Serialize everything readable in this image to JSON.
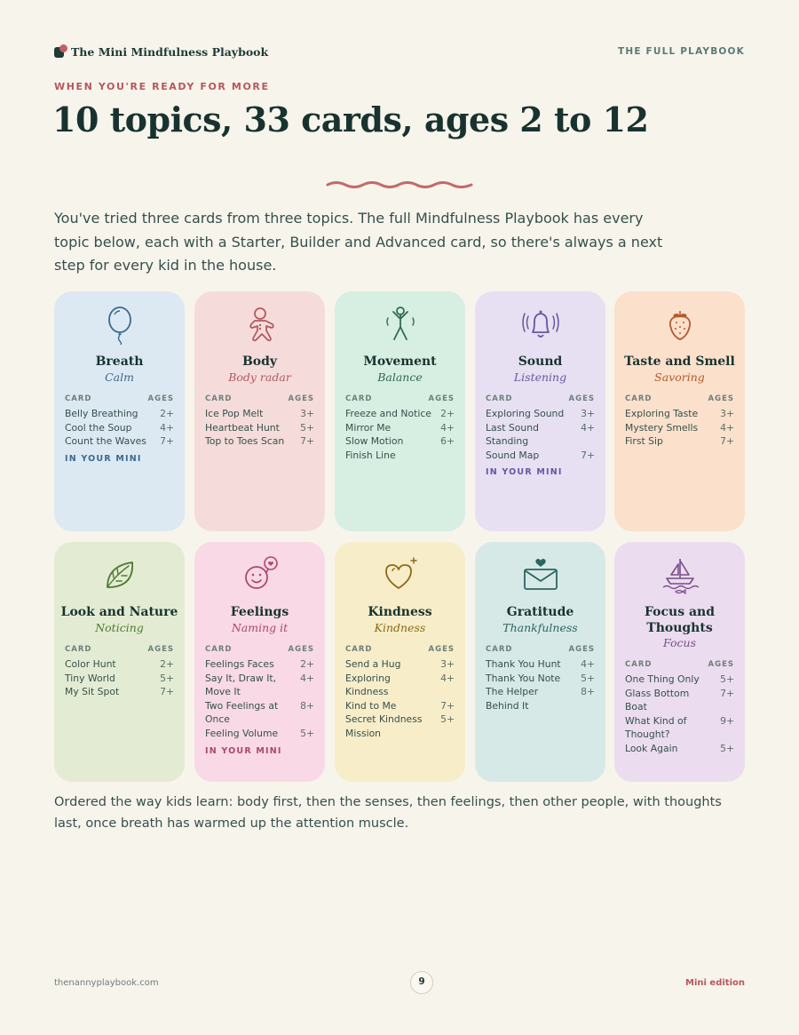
{
  "header": {
    "brand": "The Mini Mindfulness Playbook",
    "right": "THE FULL PLAYBOOK"
  },
  "eyebrow": "WHEN YOU'RE READY FOR MORE",
  "title": "10 topics, 33 cards, ages 2 to 12",
  "intro": "You've tried three cards from three topics. The full Mindfulness Playbook has every topic below, each with a Starter, Builder and Advanced card, so there's always a next step for every kid in the house.",
  "columns": {
    "card": "CARD",
    "ages": "AGES"
  },
  "topics": [
    {
      "name": "Breath",
      "subtitle": "Calm",
      "icon": "balloon-icon",
      "bg": "#dce9f3",
      "accent": "#3c6a8d",
      "in_mini": "IN YOUR MINI",
      "cards": [
        {
          "title": "Belly Breathing",
          "age": "2+"
        },
        {
          "title": "Cool the Soup",
          "age": "4+"
        },
        {
          "title": "Count the Waves",
          "age": "7+"
        }
      ]
    },
    {
      "name": "Body",
      "subtitle": "Body radar",
      "icon": "gingerbread-icon",
      "bg": "#f5dcda",
      "accent": "#b55a5e",
      "in_mini": "",
      "cards": [
        {
          "title": "Ice Pop Melt",
          "age": "3+"
        },
        {
          "title": "Heartbeat Hunt",
          "age": "5+"
        },
        {
          "title": "Top to Toes Scan",
          "age": "7+"
        }
      ]
    },
    {
      "name": "Movement",
      "subtitle": "Balance",
      "icon": "stick-figure-icon",
      "bg": "#d7eee3",
      "accent": "#2f6b55",
      "in_mini": "",
      "cards": [
        {
          "title": "Freeze and Notice",
          "age": "2+"
        },
        {
          "title": "Mirror Me",
          "age": "4+"
        },
        {
          "title": "Slow Motion Finish Line",
          "age": "6+"
        }
      ]
    },
    {
      "name": "Sound",
      "subtitle": "Listening",
      "icon": "bell-icon",
      "bg": "#e6e0f2",
      "accent": "#6a55a0",
      "in_mini": "IN YOUR MINI",
      "cards": [
        {
          "title": "Exploring Sound",
          "age": "3+"
        },
        {
          "title": "Last Sound Standing",
          "age": "4+"
        },
        {
          "title": "Sound Map",
          "age": "7+"
        }
      ]
    },
    {
      "name": "Taste and Smell",
      "subtitle": "Savoring",
      "icon": "strawberry-icon",
      "bg": "#fbe0cc",
      "accent": "#b45a2a",
      "in_mini": "",
      "cards": [
        {
          "title": "Exploring Taste",
          "age": "3+"
        },
        {
          "title": "Mystery Smells",
          "age": "4+"
        },
        {
          "title": "First Sip",
          "age": "7+"
        }
      ]
    },
    {
      "name": "Look and Nature",
      "subtitle": "Noticing",
      "icon": "leaf-icon",
      "bg": "#e3ecd3",
      "accent": "#4f7a31",
      "in_mini": "",
      "cards": [
        {
          "title": "Color Hunt",
          "age": "2+"
        },
        {
          "title": "Tiny World",
          "age": "5+"
        },
        {
          "title": "My Sit Spot",
          "age": "7+"
        }
      ]
    },
    {
      "name": "Feelings",
      "subtitle": "Naming it",
      "icon": "smiley-heart-icon",
      "bg": "#f8d9e5",
      "accent": "#b0466d",
      "in_mini": "IN YOUR MINI",
      "cards": [
        {
          "title": "Feelings Faces",
          "age": "2+"
        },
        {
          "title": "Say It, Draw It, Move It",
          "age": "4+"
        },
        {
          "title": "Two Feelings at Once",
          "age": "8+"
        },
        {
          "title": "Feeling Volume",
          "age": "5+"
        }
      ]
    },
    {
      "name": "Kindness",
      "subtitle": "Kindness",
      "icon": "heart-sparkle-icon",
      "bg": "#f7edc9",
      "accent": "#8c6a14",
      "in_mini": "",
      "cards": [
        {
          "title": "Send a Hug",
          "age": "3+"
        },
        {
          "title": "Exploring Kindness",
          "age": "4+"
        },
        {
          "title": "Kind to Me",
          "age": "7+"
        },
        {
          "title": "Secret Kindness Mission",
          "age": "5+"
        }
      ]
    },
    {
      "name": "Gratitude",
      "subtitle": "Thankfulness",
      "icon": "envelope-heart-icon",
      "bg": "#d6e9e7",
      "accent": "#2a6560",
      "in_mini": "",
      "cards": [
        {
          "title": "Thank You Hunt",
          "age": "4+"
        },
        {
          "title": "Thank You Note",
          "age": "5+"
        },
        {
          "title": "The Helper Behind It",
          "age": "8+"
        }
      ]
    },
    {
      "name": "Focus and Thoughts",
      "subtitle": "Focus",
      "icon": "sailboat-icon",
      "bg": "#ebdcef",
      "accent": "#7a4d8c",
      "in_mini": "",
      "cards": [
        {
          "title": "One Thing Only",
          "age": "5+"
        },
        {
          "title": "Glass Bottom Boat",
          "age": "7+"
        },
        {
          "title": "What Kind of Thought?",
          "age": "9+"
        },
        {
          "title": "Look Again",
          "age": "5+"
        }
      ]
    }
  ],
  "outro": "Ordered the way kids learn: body first, then the senses, then feelings, then other people, with thoughts last, once breath has warmed up the attention muscle.",
  "footer": {
    "site": "thenannyplaybook.com",
    "page": "9",
    "edition": "Mini edition"
  }
}
